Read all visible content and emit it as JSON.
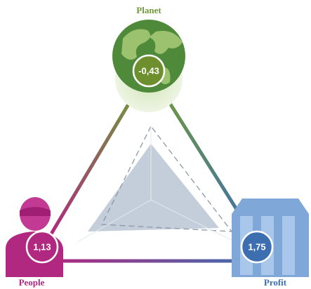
{
  "nodes": [
    {
      "label": "Planet",
      "value": "-0,43"
    },
    {
      "label": "People",
      "value": "1,13"
    },
    {
      "label": "Profit",
      "value": "1,75"
    }
  ]
}
